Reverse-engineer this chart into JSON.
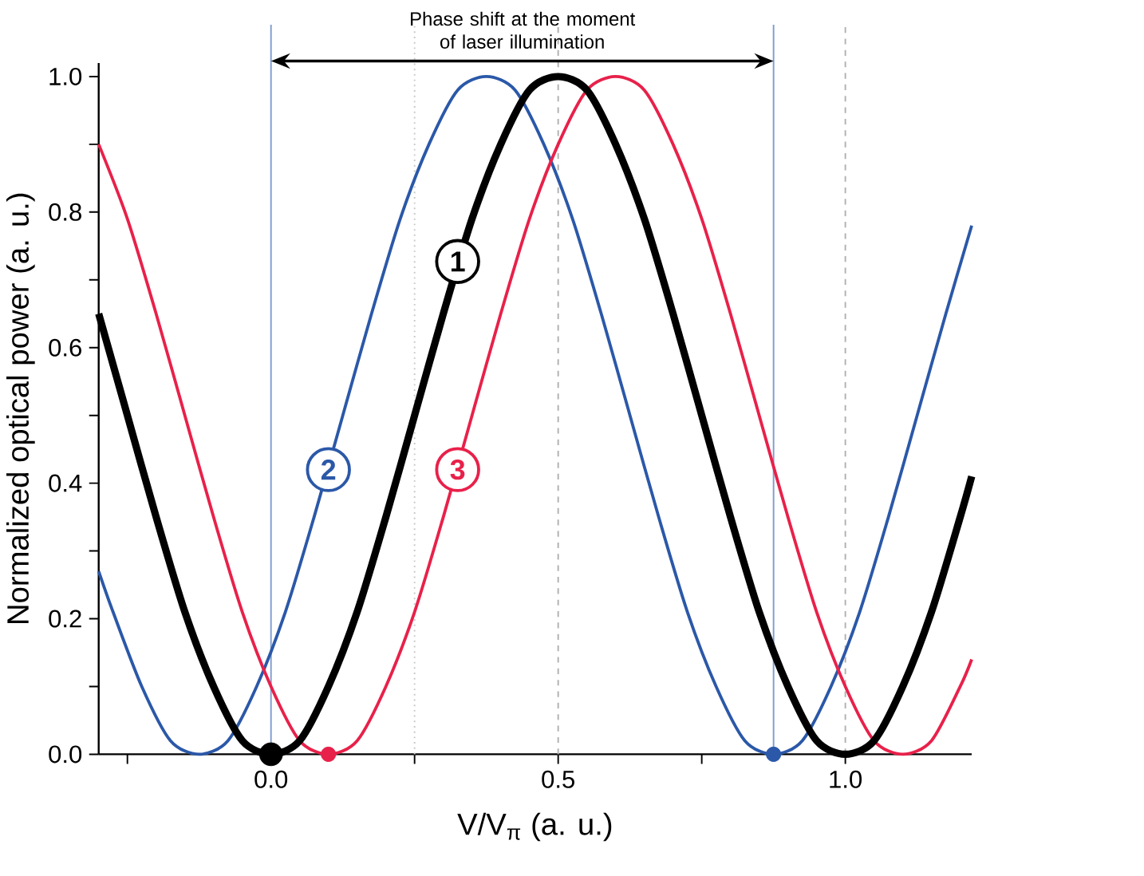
{
  "chart_data": {
    "type": "line",
    "xlabel": "V/V$_{π}$ (a. u.)",
    "ylabel": "Normalized optical power (a. u.)",
    "xlim": [
      -0.3,
      1.22
    ],
    "ylim": [
      0,
      1.02
    ],
    "xticks": [
      {
        "value": -0.25,
        "label": null
      },
      {
        "value": 0,
        "label": "0.0"
      },
      {
        "value": 0.25,
        "label": null
      },
      {
        "value": 0.5,
        "label": "0.5"
      },
      {
        "value": 0.75,
        "label": null
      },
      {
        "value": 1,
        "label": "1.0"
      }
    ],
    "yticks": [
      {
        "value": 0,
        "label": "0.0"
      },
      {
        "value": 0.1,
        "label": null
      },
      {
        "value": 0.2,
        "label": "0.2"
      },
      {
        "value": 0.3,
        "label": null
      },
      {
        "value": 0.4,
        "label": "0.4"
      },
      {
        "value": 0.5,
        "label": null
      },
      {
        "value": 0.6,
        "label": "0.6"
      },
      {
        "value": 0.7,
        "label": null
      },
      {
        "value": 0.8,
        "label": "0.8"
      },
      {
        "value": 0.9,
        "label": null
      },
      {
        "value": 1,
        "label": "1.0"
      }
    ],
    "series": [
      {
        "name": "2",
        "color": "#2b58a8",
        "x": [
          -0.3,
          -0.275,
          -0.225,
          -0.175,
          -0.125,
          -0.075,
          -0.025,
          0.025,
          0.075,
          0.125,
          0.175,
          0.225,
          0.275,
          0.325,
          0.375,
          0.425,
          0.475,
          0.525,
          0.575,
          0.625,
          0.675,
          0.725,
          0.775,
          0.825,
          0.875,
          0.925,
          0.975,
          1.025,
          1.075,
          1.125,
          1.175,
          1.22
        ],
        "values": [
          0.27,
          0.21,
          0.1,
          0.02,
          0,
          0.02,
          0.1,
          0.21,
          0.35,
          0.5,
          0.65,
          0.79,
          0.9,
          0.98,
          1,
          0.98,
          0.9,
          0.79,
          0.65,
          0.5,
          0.35,
          0.21,
          0.1,
          0.02,
          0,
          0.02,
          0.1,
          0.21,
          0.35,
          0.5,
          0.65,
          0.78
        ]
      },
      {
        "name": "3",
        "color": "#e8214a",
        "x": [
          -0.3,
          -0.25,
          -0.2,
          -0.15,
          -0.1,
          -0.05,
          0,
          0.05,
          0.1,
          0.15,
          0.2,
          0.25,
          0.3,
          0.35,
          0.4,
          0.45,
          0.5,
          0.55,
          0.6,
          0.65,
          0.7,
          0.75,
          0.8,
          0.85,
          0.9,
          0.95,
          1.0,
          1.05,
          1.1,
          1.15,
          1.2,
          1.22
        ],
        "values": [
          0.9,
          0.79,
          0.65,
          0.5,
          0.35,
          0.21,
          0.1,
          0.02,
          0,
          0.02,
          0.1,
          0.21,
          0.35,
          0.5,
          0.65,
          0.79,
          0.9,
          0.98,
          1,
          0.98,
          0.9,
          0.79,
          0.65,
          0.5,
          0.35,
          0.21,
          0.1,
          0.02,
          0,
          0.02,
          0.1,
          0.14
        ]
      },
      {
        "name": "1",
        "color": "#000000",
        "x": [
          -0.3,
          -0.25,
          -0.2,
          -0.15,
          -0.1,
          -0.05,
          0,
          0.05,
          0.1,
          0.15,
          0.2,
          0.25,
          0.3,
          0.35,
          0.4,
          0.45,
          0.5,
          0.55,
          0.6,
          0.65,
          0.7,
          0.75,
          0.8,
          0.85,
          0.9,
          0.95,
          1.0,
          1.05,
          1.1,
          1.15,
          1.2,
          1.22
        ],
        "values": [
          0.65,
          0.5,
          0.35,
          0.21,
          0.1,
          0.02,
          0,
          0.02,
          0.1,
          0.21,
          0.35,
          0.5,
          0.65,
          0.79,
          0.9,
          0.98,
          1,
          0.98,
          0.9,
          0.79,
          0.65,
          0.5,
          0.35,
          0.21,
          0.1,
          0.02,
          0,
          0.02,
          0.1,
          0.21,
          0.35,
          0.41
        ]
      },
      {
        "type": "scatter",
        "color": "#000000",
        "x": [
          0
        ],
        "values": [
          0
        ]
      },
      {
        "type": "scatter",
        "color": "#e8214a",
        "x": [
          0.1
        ],
        "values": [
          0
        ]
      },
      {
        "type": "scatter",
        "color": "#2b58a8",
        "x": [
          0.875
        ],
        "values": [
          0
        ]
      }
    ],
    "ref_lines": [
      {
        "axis": "x",
        "value": 0,
        "color": "#7f9bd0",
        "line_style": "solid"
      },
      {
        "axis": "x",
        "value": 0.875,
        "color": "#7f9bd0",
        "line_style": "solid"
      },
      {
        "axis": "x",
        "value": 0.25,
        "color": "#c8c8c8",
        "line_style": "dotted"
      },
      {
        "axis": "x",
        "value": 0.5,
        "color": "#b0b0b0",
        "line_style": "dashed"
      },
      {
        "axis": "x",
        "value": 1,
        "color": "#b0b0b0",
        "line_style": "dashed"
      }
    ],
    "annotations": [
      "Phase shift at the moment of laser illumination"
    ],
    "line_style": "solid",
    "grid": false,
    "legend": "left"
  }
}
